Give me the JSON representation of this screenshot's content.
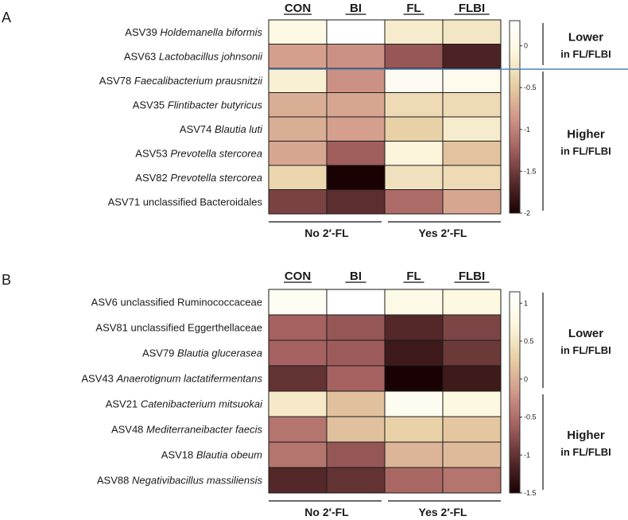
{
  "chart_data": [
    {
      "type": "heatmap",
      "panel_label": "A",
      "columns": [
        "CON",
        "BI",
        "FL",
        "FLBI"
      ],
      "rows": [
        {
          "prefix": "ASV39",
          "name": "Holdemanella biformis",
          "italic": true
        },
        {
          "prefix": "ASV63",
          "name": "Lactobacillus johnsonii",
          "italic": true
        },
        {
          "prefix": "ASV78",
          "name": "Faecalibacterium prausnitzii",
          "italic": true
        },
        {
          "prefix": "ASV35",
          "name": "Flintibacter butyricus",
          "italic": true
        },
        {
          "prefix": "ASV74",
          "name": "Blautia luti",
          "italic": true
        },
        {
          "prefix": "ASV53",
          "name": "Prevotella stercorea",
          "italic": true
        },
        {
          "prefix": "ASV82",
          "name": "Prevotella stercorea",
          "italic": true
        },
        {
          "prefix": "ASV71",
          "name": "unclassified Bacteroidales",
          "italic": false
        }
      ],
      "values": [
        [
          0.0,
          0.3,
          -0.2,
          -0.25
        ],
        [
          -0.8,
          -0.9,
          -1.3,
          -1.7
        ],
        [
          -0.15,
          -0.9,
          0.15,
          0.1
        ],
        [
          -0.7,
          -0.75,
          -0.35,
          -0.35
        ],
        [
          -0.7,
          -0.8,
          -0.45,
          -0.2
        ],
        [
          -0.75,
          -1.25,
          -0.1,
          -0.55
        ],
        [
          -0.4,
          -2.0,
          -0.3,
          -0.35
        ],
        [
          -1.45,
          -1.6,
          -1.15,
          -0.75
        ]
      ],
      "colorbar": {
        "min": -2,
        "max": 0.3,
        "ticks": [
          "0",
          "-0.5",
          "-1",
          "-1.5",
          "-2"
        ],
        "tick_values": [
          0,
          -0.5,
          -1,
          -1.5,
          -2
        ]
      },
      "groups": [
        {
          "label": "Lower",
          "sublabel": "in FL/FLBI",
          "rows": [
            0,
            1
          ]
        },
        {
          "label": "Higher",
          "sublabel": "in FL/FLBI",
          "rows": [
            2,
            7
          ]
        }
      ],
      "group_footer": [
        "No 2′-FL",
        "Yes 2′-FL"
      ]
    },
    {
      "type": "heatmap",
      "panel_label": "B",
      "columns": [
        "CON",
        "BI",
        "FL",
        "FLBI"
      ],
      "rows": [
        {
          "prefix": "ASV6",
          "name": "unclassified Ruminococcaceae",
          "italic": false
        },
        {
          "prefix": "ASV81",
          "name": "unclassified Eggerthellaceae",
          "italic": false
        },
        {
          "prefix": "ASV79",
          "name": "Blautia glucerasea",
          "italic": true
        },
        {
          "prefix": "ASV43",
          "name": "Anaerotignum lactatifermentans",
          "italic": true
        },
        {
          "prefix": "ASV21",
          "name": "Catenibacterium mitsuokai",
          "italic": true
        },
        {
          "prefix": "ASV48",
          "name": "Mediterraneibacter faecis",
          "italic": true
        },
        {
          "prefix": "ASV18",
          "name": "Blautia obeum",
          "italic": true
        },
        {
          "prefix": "ASV88",
          "name": "Negativibacillus massiliensis",
          "italic": true
        }
      ],
      "values": [
        [
          1.0,
          1.15,
          0.85,
          0.75
        ],
        [
          -0.6,
          -0.7,
          -1.1,
          -0.85
        ],
        [
          -0.6,
          -0.65,
          -1.25,
          -0.95
        ],
        [
          -1.0,
          -0.6,
          -1.5,
          -1.25
        ],
        [
          0.55,
          0.15,
          0.95,
          0.75
        ],
        [
          -0.45,
          0.15,
          0.3,
          0.2
        ],
        [
          -0.45,
          -0.7,
          0.05,
          0.1
        ],
        [
          -1.1,
          -1.0,
          -0.55,
          -0.45
        ]
      ],
      "colorbar": {
        "min": -1.5,
        "max": 1.15,
        "ticks": [
          "1",
          "0.5",
          "0",
          "-0.5",
          "-1",
          "-1.5"
        ],
        "tick_values": [
          1,
          0.5,
          0,
          -0.5,
          -1,
          -1.5
        ]
      },
      "groups": [
        {
          "label": "Lower",
          "sublabel": "in FL/FLBI",
          "rows": [
            0,
            3
          ]
        },
        {
          "label": "Higher",
          "sublabel": "in FL/FLBI",
          "rows": [
            4,
            7
          ]
        }
      ],
      "group_footer": [
        "No 2′-FL",
        "Yes 2′-FL"
      ]
    }
  ],
  "colors": {
    "divider_line": "#4f81bd",
    "stops": [
      "#1a0204",
      "#5a2c2d",
      "#a3605f",
      "#d1988a",
      "#e7cfa4",
      "#fdf7dd",
      "#ffffff"
    ]
  }
}
